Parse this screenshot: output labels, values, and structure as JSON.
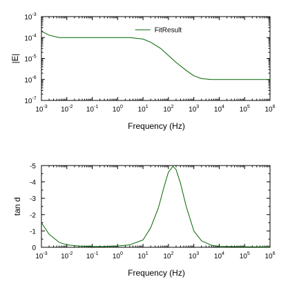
{
  "chart_data": [
    {
      "type": "line",
      "x_scale": "log",
      "y_scale": "log",
      "xlim": [
        0.001,
        1000000
      ],
      "ylim": [
        1e-07,
        0.001
      ],
      "xlabel": "Frequency (Hz)",
      "ylabel": "|E|",
      "x_tick_labels": [
        {
          "base": "10",
          "exp": "-3"
        },
        {
          "base": "10",
          "exp": "-2"
        },
        {
          "base": "10",
          "exp": "-1"
        },
        {
          "base": "10",
          "exp": "0"
        },
        {
          "base": "10",
          "exp": "1"
        },
        {
          "base": "10",
          "exp": "2"
        },
        {
          "base": "10",
          "exp": "3"
        },
        {
          "base": "10",
          "exp": "4"
        },
        {
          "base": "10",
          "exp": "5"
        },
        {
          "base": "10",
          "exp": "6"
        }
      ],
      "y_tick_labels": [
        {
          "base": "10",
          "exp": "-7"
        },
        {
          "base": "10",
          "exp": "-6"
        },
        {
          "base": "10",
          "exp": "-5"
        },
        {
          "base": "10",
          "exp": "-4"
        },
        {
          "base": "10",
          "exp": "-3"
        }
      ],
      "legend": {
        "placement": "top-center",
        "entries": [
          "FitResult"
        ]
      },
      "grid": false,
      "series": [
        {
          "name": "FitResult",
          "color": "#006400",
          "x": [
            0.001,
            0.002,
            0.005,
            0.01,
            0.1,
            1,
            3,
            10,
            20,
            50,
            100,
            200,
            500,
            1000,
            2000,
            5000,
            10000,
            100000,
            1000000
          ],
          "y": [
            0.0002,
            0.00013,
            0.0001,
            0.0001,
            0.0001,
            0.0001,
            0.0001,
            8.5e-05,
            6e-05,
            3e-05,
            1.4e-05,
            6.5e-06,
            2.7e-06,
            1.5e-06,
            1.1e-06,
            1e-06,
            1e-06,
            1e-06,
            1e-06
          ]
        }
      ]
    },
    {
      "type": "line",
      "x_scale": "log",
      "xlim": [
        0.001,
        1000000
      ],
      "ylim": [
        0,
        -5
      ],
      "y_inverted": true,
      "xlabel": "Frequency (Hz)",
      "ylabel": "tan d",
      "x_tick_labels": [
        {
          "base": "10",
          "exp": "-3"
        },
        {
          "base": "10",
          "exp": "-2"
        },
        {
          "base": "10",
          "exp": "-1"
        },
        {
          "base": "10",
          "exp": "0"
        },
        {
          "base": "10",
          "exp": "1"
        },
        {
          "base": "10",
          "exp": "2"
        },
        {
          "base": "10",
          "exp": "3"
        },
        {
          "base": "10",
          "exp": "4"
        },
        {
          "base": "10",
          "exp": "5"
        },
        {
          "base": "10",
          "exp": "6"
        }
      ],
      "y_ticks": [
        0,
        -1,
        -2,
        -3,
        -4,
        -5
      ],
      "y_tick_labels": [
        "0",
        "-1",
        "-2",
        "-3",
        "-4",
        "-5"
      ],
      "grid": false,
      "series": [
        {
          "color": "#006400",
          "x": [
            0.001,
            0.002,
            0.005,
            0.01,
            0.03,
            0.1,
            0.3,
            1,
            3,
            10,
            20,
            40,
            70,
            100,
            150,
            200,
            300,
            500,
            1000,
            2000,
            5000,
            10000,
            100000,
            1000000
          ],
          "y": [
            -1.5,
            -0.8,
            -0.3,
            -0.15,
            -0.08,
            -0.05,
            -0.05,
            -0.08,
            -0.15,
            -0.45,
            -1.2,
            -2.4,
            -3.8,
            -4.6,
            -4.95,
            -4.75,
            -3.9,
            -2.5,
            -1.0,
            -0.4,
            -0.12,
            -0.06,
            -0.03,
            -0.02
          ]
        }
      ]
    }
  ]
}
